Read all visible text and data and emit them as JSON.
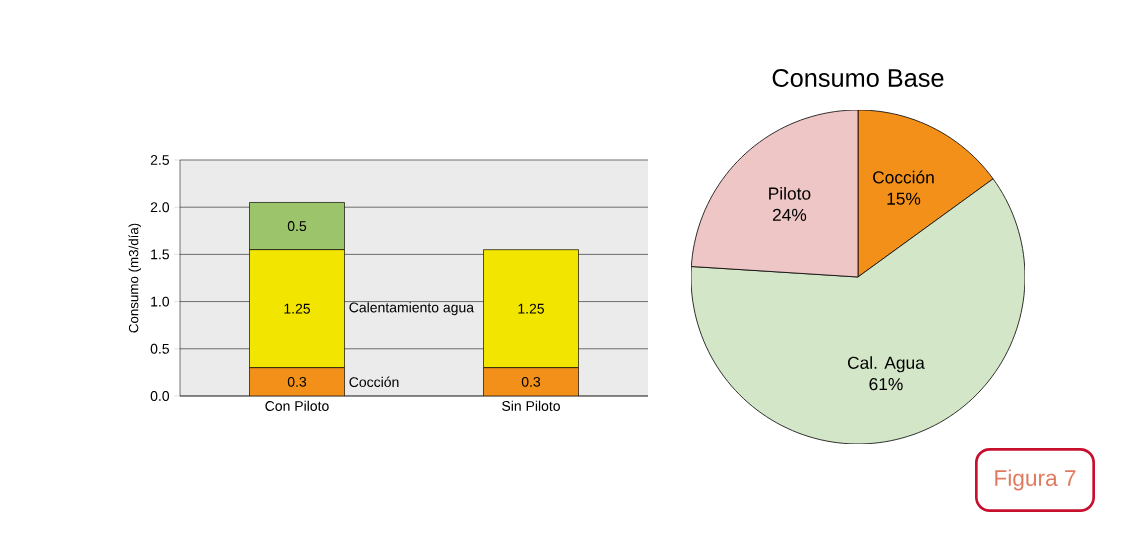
{
  "chart_data": [
    {
      "type": "bar",
      "stacked": true,
      "categories": [
        "Con Piloto",
        "Sin Piloto"
      ],
      "series": [
        {
          "name": "Cocción",
          "color": "#f39019",
          "values": [
            0.3,
            0.3
          ]
        },
        {
          "name": "Calentamiento agua",
          "color": "#f2e500",
          "values": [
            1.25,
            1.25
          ]
        },
        {
          "color": "#9bc46b",
          "values": [
            0.5,
            null
          ]
        }
      ],
      "data_labels": true,
      "ylabel": "Consumo (m3/día)",
      "ylim": [
        0,
        2.5
      ],
      "yticks": [
        {
          "value": 0,
          "label": "0.0"
        },
        {
          "value": 0.5,
          "label": "0.5"
        },
        {
          "value": 1,
          "label": "1.0"
        },
        {
          "value": 1.5,
          "label": "1.5"
        },
        {
          "value": 2,
          "label": "2.0"
        },
        {
          "value": 2.5,
          "label": "2.5"
        }
      ],
      "grid": "y"
    },
    {
      "type": "pie",
      "title": "Consumo Base",
      "categories": [
        "Cocción",
        "Cal. Agua",
        "Piloto"
      ],
      "values": [
        15,
        61,
        24
      ],
      "colors": [
        "#f39019",
        "#d4e6c8",
        "#eec6c6"
      ],
      "value_labels": [
        "15%",
        "61%",
        "24%"
      ],
      "annotations": [
        "Figura 7"
      ]
    }
  ]
}
